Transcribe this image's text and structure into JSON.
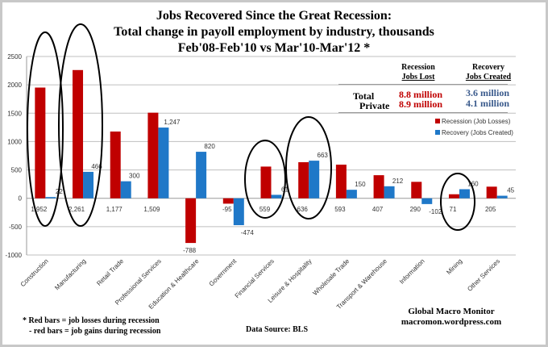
{
  "title_lines": [
    "Jobs Recovered Since the Great Recession:",
    "Total change in payoll employment by industry,  thousands",
    "Feb'08-Feb'10 vs Mar'10-Mar'12  *"
  ],
  "summary_table": {
    "col1_header": [
      "Recession",
      "Jobs Lost"
    ],
    "col2_header": [
      "Recovery",
      "Jobs Created"
    ],
    "rows": [
      {
        "label": "Total",
        "lost": "8.8 million",
        "created": "3.6 million"
      },
      {
        "label": "Private",
        "lost": "8.9 million",
        "created": "4.1 million"
      }
    ]
  },
  "footnote": [
    "* Red bars = job losses during recession",
    "- red bars = job gains during recession"
  ],
  "source": "Data Source:   BLS",
  "credit": [
    "Global Macro Monitor",
    "macromon.wordpress.com"
  ],
  "colors": {
    "recession": "#c00000",
    "recovery": "#1f78c8",
    "grid": "#bfbfbf",
    "lost_text": "#c00000",
    "created_text": "#3a5a8c"
  },
  "chart_data": {
    "type": "bar",
    "title": "Jobs Recovered Since the Great Recession: Total change in payoll employment by industry,  thousands Feb'08-Feb'10 vs Mar'10-Mar'12  *",
    "categories": [
      "Construction",
      "Manufacturing",
      "Retail Trade",
      "Professional Services",
      "Education & Healthcare",
      "Government",
      "Financial Services",
      "Leisure & Hospitality",
      "Wholesale Trade",
      "Transport & Warehouse",
      "Information",
      "Mining",
      "Other Services"
    ],
    "series": [
      {
        "name": "Recession (Job Losses)",
        "values": [
          1952,
          2261,
          1177,
          1509,
          -788,
          -95,
          559,
          636,
          593,
          407,
          290,
          71,
          205
        ],
        "labels": [
          "1,952",
          "2,261",
          "1,177",
          "1,509",
          "-788",
          "-95",
          "559",
          "636",
          "593",
          "407",
          "290",
          "71",
          "205"
        ]
      },
      {
        "name": "Recovery (Jobs Created)",
        "values": [
          22,
          466,
          300,
          1247,
          820,
          -474,
          61,
          663,
          150,
          212,
          -102,
          160,
          45
        ],
        "labels": [
          "22",
          "466",
          "300",
          "1,247",
          "820",
          "-474",
          "61",
          "663",
          "150",
          "212",
          "-102",
          "160",
          "45"
        ]
      }
    ],
    "yticks": [
      2500,
      2000,
      1500,
      1000,
      500,
      0,
      -500,
      -1000
    ],
    "ylim": [
      -1000,
      2500
    ],
    "grid": true,
    "legend": "right",
    "circled_categories": [
      "Construction",
      "Manufacturing",
      "Financial Services",
      "Leisure & Hospitality",
      "Mining"
    ]
  }
}
